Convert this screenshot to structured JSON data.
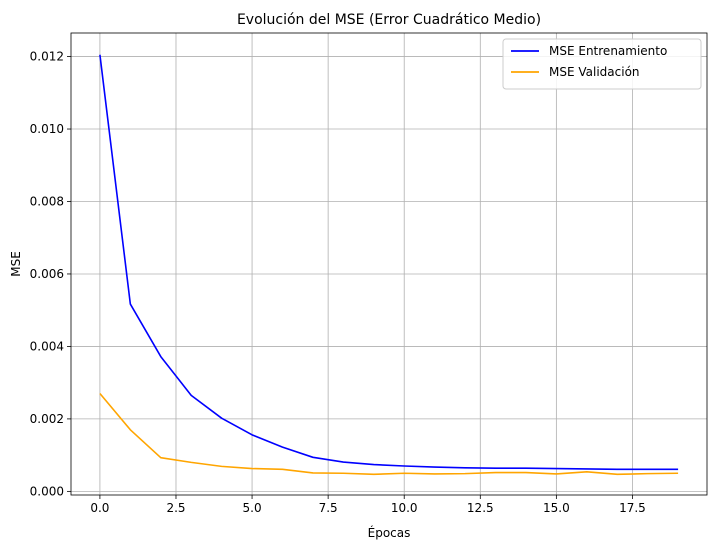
{
  "chart_data": {
    "type": "line",
    "title": "Evolución del MSE (Error Cuadrático Medio)",
    "xlabel": "Épocas",
    "ylabel": "MSE",
    "xlim": [
      -0.95,
      19.95
    ],
    "ylim": [
      -0.0001,
      0.01265
    ],
    "xticks": [
      0.0,
      2.5,
      5.0,
      7.5,
      10.0,
      12.5,
      15.0,
      17.5
    ],
    "xtick_labels": [
      "0.0",
      "2.5",
      "5.0",
      "7.5",
      "10.0",
      "12.5",
      "15.0",
      "17.5"
    ],
    "yticks": [
      0.0,
      0.002,
      0.004,
      0.006,
      0.008,
      0.01,
      0.012
    ],
    "ytick_labels": [
      "0.000",
      "0.002",
      "0.004",
      "0.006",
      "0.008",
      "0.010",
      "0.012"
    ],
    "grid": true,
    "legend_position": "top-right",
    "x": [
      0,
      1,
      2,
      3,
      4,
      5,
      6,
      7,
      8,
      9,
      10,
      11,
      12,
      13,
      14,
      15,
      16,
      17,
      18,
      19
    ],
    "series": [
      {
        "name": "MSE Entrenamiento",
        "color": "#0000ff",
        "values": [
          0.01205,
          0.00517,
          0.00372,
          0.00265,
          0.00202,
          0.00156,
          0.00122,
          0.00094,
          0.00081,
          0.00074,
          0.0007,
          0.00067,
          0.00065,
          0.00064,
          0.00064,
          0.00063,
          0.00062,
          0.00061,
          0.00061,
          0.00061
        ]
      },
      {
        "name": "MSE Validación",
        "color": "#ffa500",
        "values": [
          0.0027,
          0.0017,
          0.00093,
          0.0008,
          0.00069,
          0.00063,
          0.00061,
          0.00051,
          0.0005,
          0.00047,
          0.0005,
          0.00048,
          0.00049,
          0.00052,
          0.00052,
          0.00048,
          0.00054,
          0.00047,
          0.00049,
          0.0005
        ]
      }
    ]
  }
}
